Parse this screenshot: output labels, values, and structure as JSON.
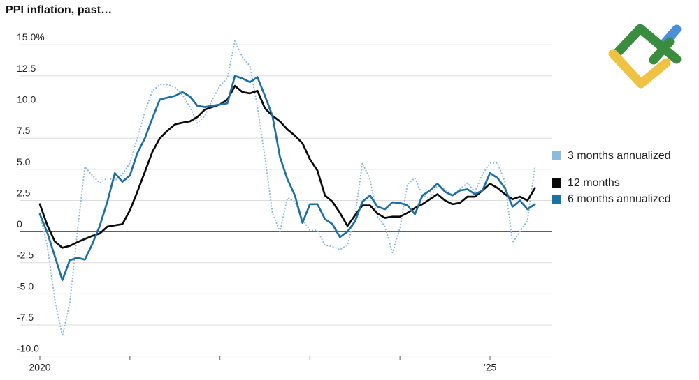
{
  "title": "PPI inflation, past…",
  "legend": {
    "items": [
      {
        "label": "3 months annualized",
        "color": "#8dbbdc"
      },
      {
        "label": "12 months",
        "color": "#0a0a0a"
      },
      {
        "label": "6 months annualized",
        "color": "#1e6fa3"
      }
    ]
  },
  "logo": {
    "name": "litefinance-logo",
    "colors": {
      "green": "#3a8c3f",
      "yellow": "#efc244",
      "blue": "#4a90d9"
    }
  },
  "chart_data": {
    "type": "line",
    "title": "PPI inflation, past…",
    "x_unit": "month",
    "x_start": "2020-01",
    "x_end": "2025-07",
    "ylim": [
      -10,
      15
    ],
    "grid": "horizontal",
    "zero_line": true,
    "legend_position": "right",
    "y_ticks": [
      {
        "value": 15,
        "label": "15.0%"
      },
      {
        "value": 12.5,
        "label": "12.5"
      },
      {
        "value": 10,
        "label": "10.0"
      },
      {
        "value": 7.5,
        "label": "7.5"
      },
      {
        "value": 5,
        "label": "5.0"
      },
      {
        "value": 2.5,
        "label": "2.5"
      },
      {
        "value": 0,
        "label": "0"
      },
      {
        "value": -2.5,
        "label": "-2.5"
      },
      {
        "value": -5,
        "label": "-5.0"
      },
      {
        "value": -7.5,
        "label": "-7.5"
      },
      {
        "value": -10,
        "label": "-10.0"
      }
    ],
    "x_ticks": [
      {
        "month": 0,
        "label": "2020"
      },
      {
        "month": 12,
        "label": ""
      },
      {
        "month": 24,
        "label": ""
      },
      {
        "month": 36,
        "label": ""
      },
      {
        "month": 48,
        "label": ""
      },
      {
        "month": 60,
        "label": "’25"
      }
    ],
    "series": [
      {
        "name": "3 months annualized",
        "style": "dotted",
        "color": "#8dbbdc",
        "values": [
          1.4,
          -1.2,
          -5.5,
          -8.4,
          -5.7,
          0,
          5.2,
          4.5,
          3.9,
          4.3,
          4.1,
          4.6,
          5.5,
          7.5,
          9.6,
          11.3,
          11.8,
          11.8,
          11.6,
          11,
          10,
          8.7,
          9.3,
          10.6,
          11.7,
          12.3,
          15.3,
          14,
          13.3,
          10,
          6,
          1.5,
          0,
          2.7,
          2.4,
          0.95,
          0.1,
          0.1,
          -1.1,
          -1.2,
          -1.45,
          -1.1,
          1.2,
          5.5,
          4.2,
          1.2,
          0.4,
          -1.7,
          0.3,
          3.8,
          4.3,
          2.9,
          2.7,
          3.7,
          3.4,
          2.9,
          3.4,
          3.9,
          3.2,
          4.6,
          5.5,
          5.5,
          4,
          -0.9,
          0,
          0.9,
          5.3
        ]
      },
      {
        "name": "12 months",
        "style": "solid",
        "color": "#0a0a0a",
        "values": [
          2.2,
          0.5,
          -0.8,
          -1.3,
          -1.15,
          -0.85,
          -0.6,
          -0.35,
          -0.15,
          0.4,
          0.5,
          0.6,
          1.7,
          3.2,
          4.8,
          6.4,
          7.5,
          8.1,
          8.6,
          8.75,
          8.85,
          9.2,
          9.8,
          10,
          10.2,
          10.6,
          11.7,
          11.2,
          11.1,
          11.3,
          9.9,
          9.3,
          8.85,
          8.2,
          7.7,
          7.1,
          5.8,
          4.9,
          2.9,
          2.4,
          1.5,
          0.45,
          1.3,
          2.1,
          2.1,
          1.45,
          1.1,
          1.2,
          1.2,
          1.5,
          1.9,
          2.2,
          2.6,
          3,
          2.5,
          2.2,
          2.3,
          2.8,
          2.8,
          3.3,
          3.85,
          3.5,
          3,
          2.6,
          2.8,
          2.5,
          3.5
        ]
      },
      {
        "name": "6 months annualized",
        "style": "solid",
        "color": "#1e6fa3",
        "values": [
          1.4,
          -0.1,
          -2,
          -3.9,
          -2.3,
          -2.1,
          -2.25,
          -1,
          0.5,
          2.4,
          4.7,
          4,
          4.5,
          6.3,
          7.5,
          9.1,
          10.6,
          10.75,
          10.9,
          11.2,
          10.85,
          10.1,
          10,
          10.1,
          10.2,
          10.3,
          12.5,
          12.3,
          12,
          12.4,
          10.9,
          9.3,
          6,
          4.2,
          2.9,
          0.7,
          2.2,
          2.2,
          1,
          0.6,
          -0.45,
          0,
          0.8,
          2.4,
          2.9,
          2,
          1.8,
          2.35,
          2.3,
          2.1,
          1.4,
          2.9,
          3.3,
          3.85,
          3.2,
          2.9,
          3.3,
          3.4,
          3,
          3.3,
          4.7,
          4.3,
          3.5,
          2,
          2.5,
          1.8,
          2.2
        ]
      }
    ]
  }
}
